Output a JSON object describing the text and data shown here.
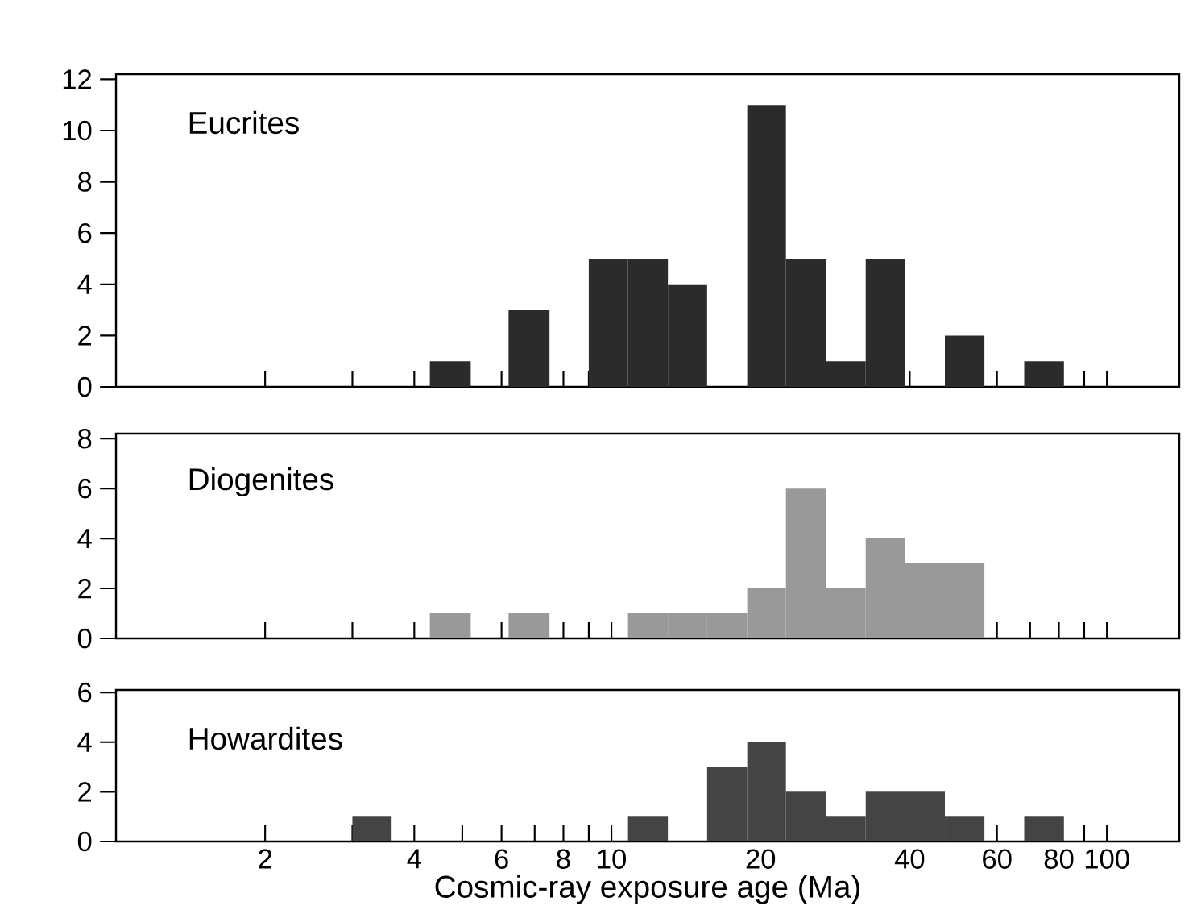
{
  "chart_data": [
    {
      "type": "histogram",
      "title": "Eucrites",
      "color": "#2b2b2b",
      "log": "x",
      "tick_labels": "y",
      "bins": [
        4.3,
        5.2,
        6.2,
        7.5,
        9.0,
        10.8,
        13.0,
        15.6,
        18.8,
        22.5,
        27.1,
        32.6,
        39.2,
        47.1,
        56.6,
        68.1,
        81.9
      ],
      "values": [
        1,
        0,
        3,
        0,
        5,
        5,
        4,
        0,
        11,
        5,
        1,
        5,
        0,
        2,
        0,
        1
      ],
      "xlim": [
        1,
        140
      ],
      "ylim": [
        0,
        12.2
      ],
      "yticks": [
        0,
        2,
        4,
        6,
        8,
        10,
        12
      ],
      "xticks": [
        2,
        3,
        4,
        5,
        6,
        7,
        8,
        9,
        10,
        20,
        30,
        40,
        50,
        60,
        70,
        80,
        90,
        100
      ]
    },
    {
      "type": "histogram",
      "title": "Diogenites",
      "color": "#999999",
      "log": "x",
      "tick_labels": "y",
      "bins": [
        4.3,
        5.2,
        6.2,
        7.5,
        10.8,
        13.0,
        15.6,
        18.8,
        22.5,
        27.1,
        32.6,
        39.2,
        47.1,
        56.6
      ],
      "values": [
        1,
        0,
        1,
        0,
        1,
        1,
        1,
        2,
        6,
        2,
        4,
        3,
        3
      ],
      "xlim": [
        1,
        140
      ],
      "ylim": [
        0,
        8.2
      ],
      "yticks": [
        0,
        2,
        4,
        6,
        8
      ],
      "xticks": [
        2,
        3,
        4,
        5,
        6,
        7,
        8,
        9,
        10,
        20,
        30,
        40,
        50,
        60,
        70,
        80,
        90,
        100
      ]
    },
    {
      "type": "histogram",
      "title": "Howardites",
      "color": "#444444",
      "log": "x",
      "xlabel": "Cosmic-ray exposure age (Ma)",
      "bins": [
        3.0,
        3.6,
        10.8,
        13.0,
        15.6,
        18.8,
        22.5,
        27.1,
        32.6,
        39.2,
        47.1,
        56.6,
        68.1,
        81.9
      ],
      "values": [
        1,
        0,
        1,
        0,
        3,
        4,
        2,
        1,
        2,
        2,
        1,
        0,
        1
      ],
      "xlim": [
        1,
        140
      ],
      "ylim": [
        0,
        6.1
      ],
      "yticks": [
        0,
        2,
        4,
        6
      ],
      "xticks": [
        2,
        {
          "value": 3,
          "label": null
        },
        4,
        {
          "value": 5,
          "label": null
        },
        6,
        {
          "value": 7,
          "label": null
        },
        8,
        {
          "value": 9,
          "label": null
        },
        10,
        20,
        {
          "value": 30,
          "label": null
        },
        40,
        {
          "value": 50,
          "label": null
        },
        60,
        {
          "value": 70,
          "label": null
        },
        80,
        {
          "value": 90,
          "label": null
        },
        100
      ]
    }
  ]
}
